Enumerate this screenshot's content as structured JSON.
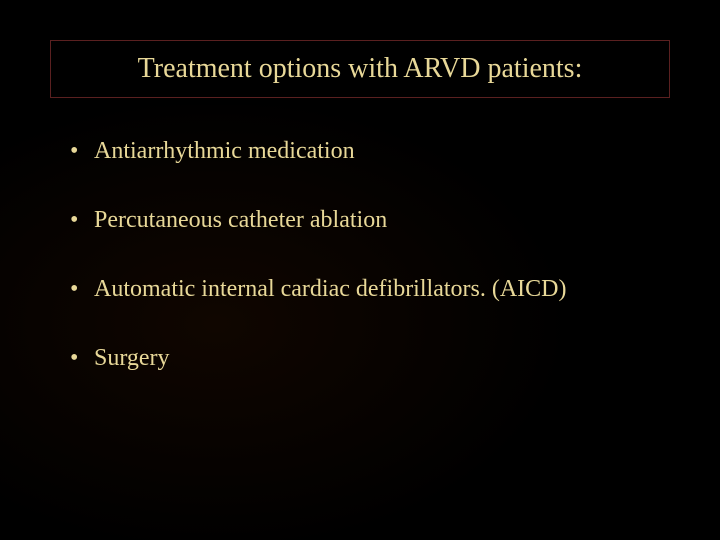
{
  "slide": {
    "title": "Treatment options with ARVD patients:",
    "bullets": [
      "Antiarrhythmic medication",
      "Percutaneous catheter ablation",
      "Automatic internal cardiac defibrillators. (AICD)",
      "Surgery"
    ],
    "colors": {
      "background": "#000000",
      "text": "#e8d898",
      "border": "#5a2020"
    },
    "fonts": {
      "title_size": 28,
      "bullet_size": 24,
      "family": "Times New Roman"
    }
  }
}
